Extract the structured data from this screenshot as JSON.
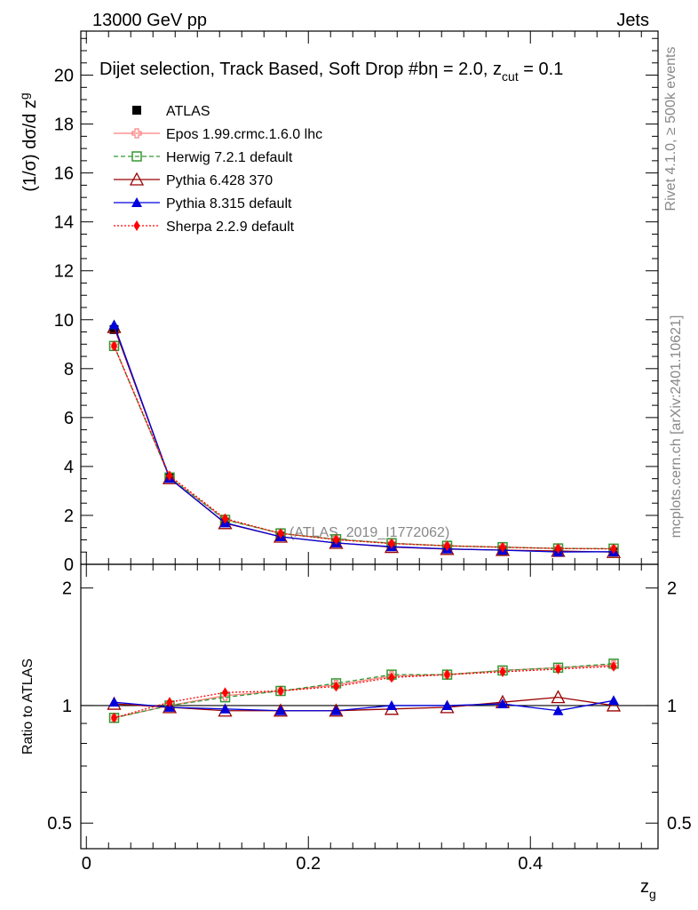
{
  "header": {
    "left": "13000 GeV pp",
    "right": "Jets"
  },
  "side_labels": {
    "rivet": "Rivet 4.1.0, ≥ 500k events",
    "mcplots": "mcplots.cern.ch [arXiv:2401.10621]"
  },
  "chart_data": {
    "type": "line",
    "title_main": "Dijet selection, Track Based, Soft Drop #b",
    "title_eta": "η = 2.0, z",
    "title_sub": "cut",
    "title_end": " = 0.1",
    "analysis_label": "(ATLAS_2019_I1772062)",
    "xlabel": "z",
    "xlabel_sub": "g",
    "ylabel_prefix": "(1/σ) dσ/d z",
    "ylabel_sub": "g",
    "ratio_ylabel": "Ratio to ATLAS",
    "xlim": [
      -0.005,
      0.515
    ],
    "ylim": [
      0,
      21.8
    ],
    "ratio_ylim": [
      0.43,
      2.3
    ],
    "x_ticks": [
      "0",
      "0.2",
      "0.4"
    ],
    "x_tick_values": [
      0,
      0.2,
      0.4
    ],
    "y_ticks": [
      "0",
      "2",
      "4",
      "6",
      "8",
      "10",
      "12",
      "14",
      "16",
      "18",
      "20"
    ],
    "y_tick_values": [
      0,
      2,
      4,
      6,
      8,
      10,
      12,
      14,
      16,
      18,
      20
    ],
    "ratio_ticks": [
      "0.5",
      "1",
      "2"
    ],
    "ratio_tick_values": [
      0.5,
      1,
      2
    ],
    "x": [
      0.025,
      0.075,
      0.125,
      0.175,
      0.225,
      0.275,
      0.325,
      0.375,
      0.425,
      0.475
    ],
    "data": {
      "name": "ATLAS",
      "values": [
        9.6,
        3.55,
        1.73,
        1.16,
        0.9,
        0.72,
        0.63,
        0.57,
        0.52,
        0.5
      ]
    },
    "series": [
      {
        "name": "Epos 1.99.crmc.1.6.0 lhc",
        "color": "#ff7f7f",
        "marker": "open-cross",
        "dash": "",
        "ratio": [
          0.93,
          1.0,
          1.06,
          1.09,
          1.13,
          1.19,
          1.2,
          1.23,
          1.25,
          1.27
        ]
      },
      {
        "name": "Herwig 7.2.1 default",
        "color": "#339933",
        "marker": "open-square",
        "dash": "5,3",
        "ratio": [
          0.93,
          1.0,
          1.05,
          1.09,
          1.14,
          1.2,
          1.2,
          1.23,
          1.25,
          1.28
        ]
      },
      {
        "name": "Pythia 6.428 370",
        "color": "#990000",
        "marker": "open-triangle",
        "dash": "",
        "ratio": [
          1.01,
          0.99,
          0.97,
          0.97,
          0.97,
          0.98,
          0.99,
          1.02,
          1.05,
          1.0
        ]
      },
      {
        "name": "Pythia 8.315 default",
        "color": "#0000dd",
        "marker": "filled-triangle",
        "dash": "",
        "ratio": [
          1.02,
          0.99,
          0.98,
          0.97,
          0.97,
          1.0,
          1.0,
          1.01,
          0.97,
          1.03
        ]
      },
      {
        "name": "Sherpa 2.2.9 default",
        "color": "#ff0000",
        "marker": "filled-diamond",
        "dash": "2,2",
        "ratio": [
          0.93,
          1.02,
          1.08,
          1.09,
          1.12,
          1.18,
          1.2,
          1.22,
          1.24,
          1.26
        ]
      }
    ]
  }
}
